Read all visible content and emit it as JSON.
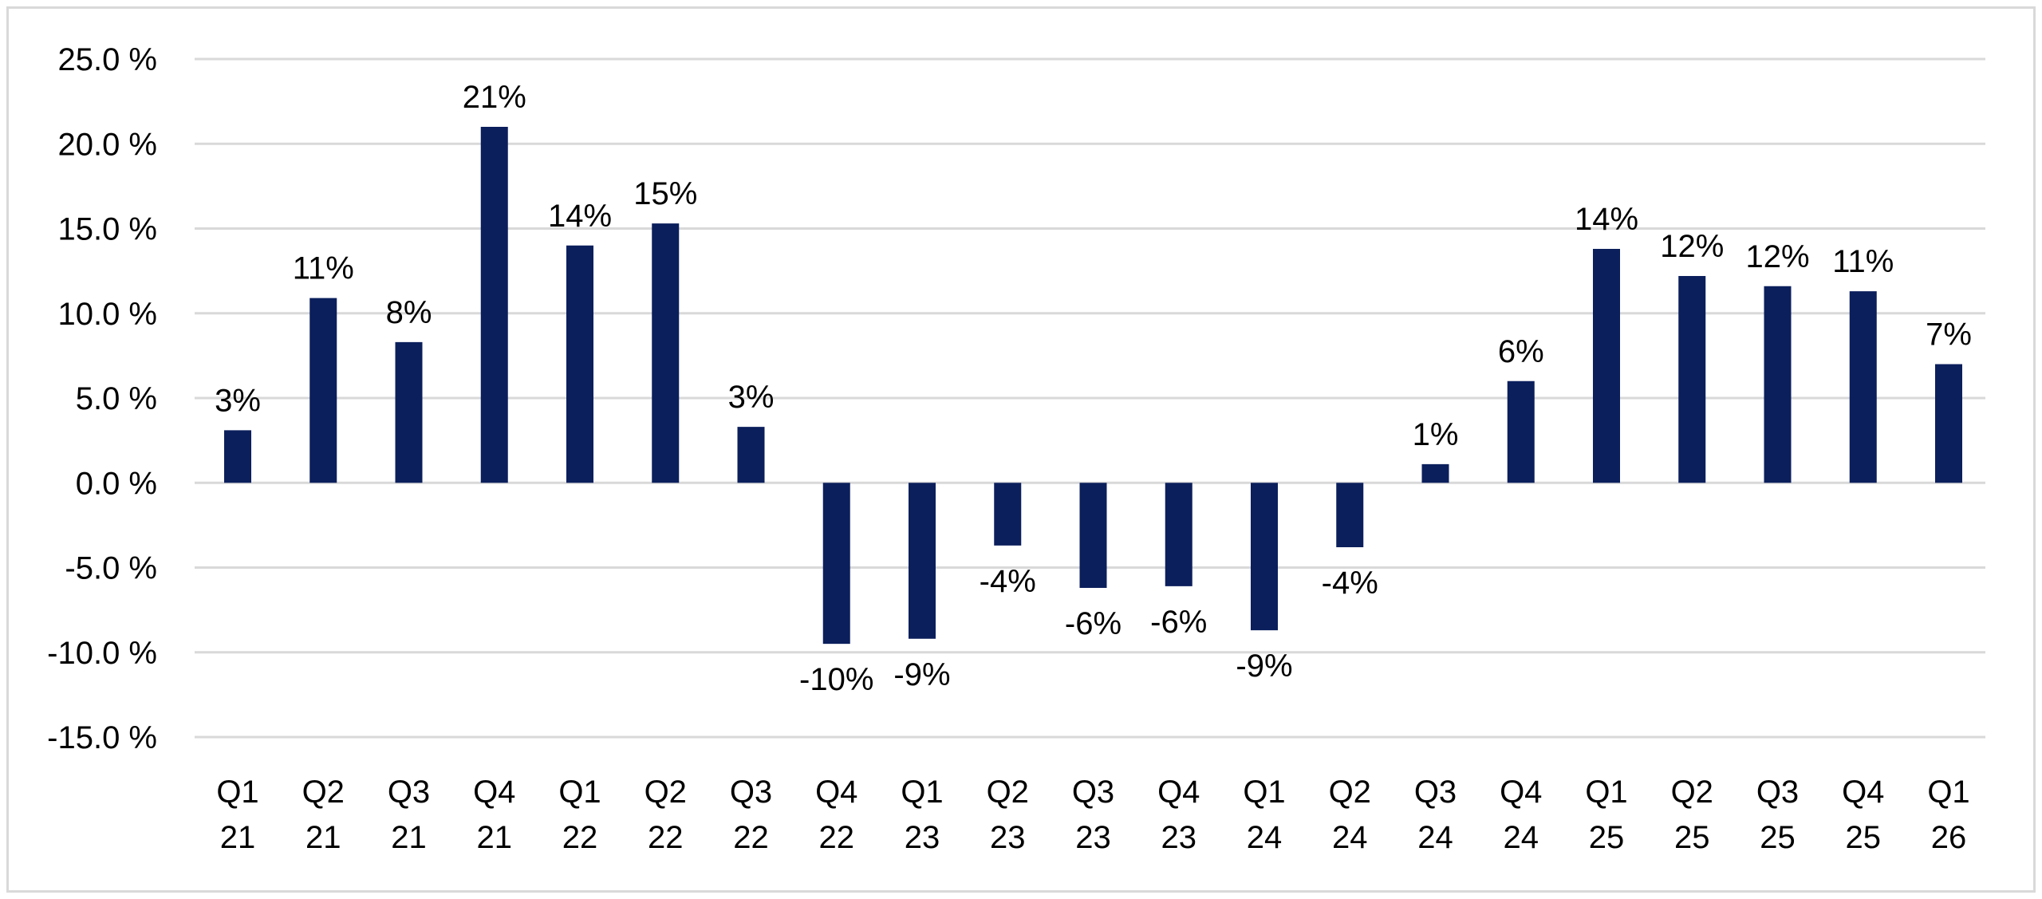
{
  "chart_data": {
    "type": "bar",
    "title": "",
    "xlabel": "",
    "ylabel": "",
    "categories": [
      [
        "Q1",
        "21"
      ],
      [
        "Q2",
        "21"
      ],
      [
        "Q3",
        "21"
      ],
      [
        "Q4",
        "21"
      ],
      [
        "Q1",
        "22"
      ],
      [
        "Q2",
        "22"
      ],
      [
        "Q3",
        "22"
      ],
      [
        "Q4",
        "22"
      ],
      [
        "Q1",
        "23"
      ],
      [
        "Q2",
        "23"
      ],
      [
        "Q3",
        "23"
      ],
      [
        "Q4",
        "23"
      ],
      [
        "Q1",
        "24"
      ],
      [
        "Q2",
        "24"
      ],
      [
        "Q3",
        "24"
      ],
      [
        "Q4",
        "24"
      ],
      [
        "Q1",
        "25"
      ],
      [
        "Q2",
        "25"
      ],
      [
        "Q3",
        "25"
      ],
      [
        "Q4",
        "25"
      ],
      [
        "Q1",
        "26"
      ]
    ],
    "values": [
      3.1,
      10.9,
      8.3,
      21.0,
      14.0,
      15.3,
      3.3,
      -9.5,
      -9.2,
      -3.7,
      -6.2,
      -6.1,
      -8.7,
      -3.8,
      1.1,
      6.0,
      13.8,
      12.2,
      11.6,
      11.3,
      7.0
    ],
    "data_labels": [
      "3%",
      "11%",
      "8%",
      "21%",
      "14%",
      "15%",
      "3%",
      "-10%",
      "-9%",
      "-4%",
      "-6%",
      "-6%",
      "-9%",
      "-4%",
      "1%",
      "6%",
      "14%",
      "12%",
      "12%",
      "11%",
      "7%"
    ],
    "ylim": [
      -15,
      25
    ],
    "y_ticks": [
      25,
      20,
      15,
      10,
      5,
      0,
      -5,
      -10,
      -15
    ],
    "y_tick_labels": [
      "25.0 %",
      "20.0 %",
      "15.0 %",
      "10.0 %",
      "5.0 %",
      "0.0 %",
      "-5.0 %",
      "-10.0 %",
      "-15.0 %"
    ],
    "grid": true,
    "legend": "none",
    "colors": {
      "bar": "#0b1f5c",
      "grid": "#d9d9d9",
      "text": "#000000"
    }
  }
}
